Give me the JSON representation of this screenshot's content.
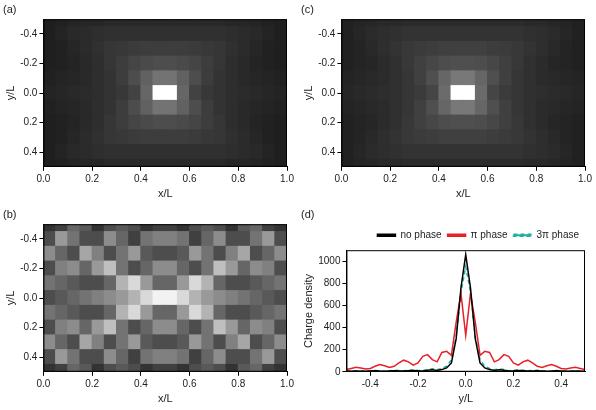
{
  "chart_data": [
    {
      "type": "heatmap",
      "panel": "(a)",
      "x_label": "x/L",
      "y_label": "y/L",
      "xlim": [
        0,
        1
      ],
      "ylim": [
        0.5,
        -0.5
      ],
      "xticks": [
        {
          "value": 0,
          "label": "0.0"
        },
        0.2,
        0.4,
        0.6,
        0.8,
        {
          "value": 1,
          "label": "1.0"
        }
      ],
      "yticks": [
        -0.4,
        -0.2,
        {
          "value": 0,
          "label": "0.0"
        },
        0.2,
        0.4
      ],
      "grid": false,
      "x": [
        0.025,
        0.075,
        0.125,
        0.175,
        0.225,
        0.275,
        0.325,
        0.375,
        0.425,
        0.475,
        0.525,
        0.575,
        0.625,
        0.675,
        0.725,
        0.775,
        0.825,
        0.875,
        0.925,
        0.975
      ],
      "y": [
        -0.5,
        -0.4,
        -0.3,
        -0.2,
        -0.1,
        0,
        0.1,
        0.2,
        0.3,
        0.4,
        0.5
      ],
      "cells": [
        [
          12,
          13,
          14,
          15,
          15,
          16,
          16,
          16,
          16,
          16,
          16,
          16,
          16,
          16,
          16,
          15,
          15,
          14,
          13,
          12
        ],
        [
          12,
          14,
          16,
          17,
          18,
          19,
          19,
          19,
          19,
          19,
          19,
          19,
          19,
          19,
          19,
          18,
          17,
          16,
          14,
          12
        ],
        [
          12,
          13,
          15,
          17,
          19,
          21,
          22,
          23,
          24,
          24,
          24,
          24,
          23,
          22,
          21,
          19,
          17,
          15,
          13,
          12
        ],
        [
          12,
          13,
          14,
          16,
          18,
          21,
          24,
          27,
          29,
          30,
          30,
          29,
          27,
          24,
          21,
          18,
          16,
          14,
          13,
          12
        ],
        [
          13,
          14,
          15,
          16,
          18,
          20,
          24,
          30,
          38,
          45,
          45,
          38,
          30,
          24,
          20,
          18,
          16,
          15,
          14,
          13
        ],
        [
          14,
          15,
          16,
          17,
          18,
          20,
          22,
          26,
          40,
          100,
          100,
          40,
          26,
          22,
          20,
          18,
          17,
          16,
          15,
          14
        ],
        [
          13,
          14,
          15,
          16,
          18,
          20,
          24,
          30,
          38,
          45,
          45,
          38,
          30,
          24,
          20,
          18,
          16,
          15,
          14,
          13
        ],
        [
          12,
          13,
          14,
          16,
          18,
          21,
          24,
          27,
          29,
          30,
          30,
          29,
          27,
          24,
          21,
          18,
          16,
          14,
          13,
          12
        ],
        [
          12,
          13,
          15,
          17,
          19,
          21,
          22,
          23,
          24,
          24,
          24,
          24,
          23,
          22,
          21,
          19,
          17,
          15,
          13,
          12
        ],
        [
          12,
          14,
          16,
          17,
          18,
          19,
          19,
          19,
          19,
          19,
          19,
          19,
          19,
          19,
          19,
          18,
          17,
          16,
          14,
          12
        ],
        [
          12,
          13,
          14,
          15,
          15,
          16,
          16,
          16,
          16,
          16,
          16,
          16,
          16,
          16,
          16,
          15,
          15,
          14,
          13,
          12
        ]
      ]
    },
    {
      "type": "heatmap",
      "panel": "(c)",
      "x_label": "x/L",
      "y_label": "y/L",
      "xlim": [
        0,
        1
      ],
      "ylim": [
        0.5,
        -0.5
      ],
      "xticks": [
        {
          "value": 0,
          "label": "0.0"
        },
        0.2,
        0.4,
        0.6,
        0.8,
        {
          "value": 1,
          "label": "1.0"
        }
      ],
      "yticks": [
        -0.4,
        -0.2,
        {
          "value": 0,
          "label": "0.0"
        },
        0.2,
        0.4
      ],
      "grid": false,
      "x": [
        0.025,
        0.075,
        0.125,
        0.175,
        0.225,
        0.275,
        0.325,
        0.375,
        0.425,
        0.475,
        0.525,
        0.575,
        0.625,
        0.675,
        0.725,
        0.775,
        0.825,
        0.875,
        0.925,
        0.975
      ],
      "y": [
        -0.5,
        -0.4,
        -0.3,
        -0.2,
        -0.1,
        0,
        0.1,
        0.2,
        0.3,
        0.4,
        0.5
      ],
      "cells": [
        [
          13,
          14,
          15,
          16,
          16,
          17,
          17,
          17,
          17,
          17,
          17,
          17,
          17,
          17,
          17,
          16,
          16,
          15,
          14,
          13
        ],
        [
          13,
          15,
          17,
          18,
          19,
          20,
          20,
          20,
          20,
          20,
          20,
          20,
          20,
          20,
          20,
          19,
          18,
          17,
          15,
          13
        ],
        [
          13,
          14,
          16,
          18,
          20,
          22,
          23,
          24,
          25,
          25,
          25,
          25,
          24,
          23,
          22,
          20,
          18,
          16,
          14,
          13
        ],
        [
          13,
          14,
          15,
          17,
          19,
          22,
          25,
          28,
          30,
          31,
          31,
          30,
          28,
          25,
          22,
          19,
          17,
          15,
          14,
          13
        ],
        [
          14,
          15,
          16,
          17,
          19,
          21,
          25,
          31,
          40,
          47,
          47,
          40,
          31,
          25,
          21,
          19,
          17,
          16,
          15,
          14
        ],
        [
          15,
          16,
          17,
          18,
          19,
          21,
          23,
          27,
          42,
          100,
          100,
          42,
          27,
          23,
          21,
          19,
          18,
          17,
          16,
          15
        ],
        [
          14,
          15,
          16,
          17,
          19,
          21,
          25,
          31,
          40,
          47,
          47,
          40,
          31,
          25,
          21,
          19,
          17,
          16,
          15,
          14
        ],
        [
          13,
          14,
          15,
          17,
          19,
          22,
          25,
          28,
          30,
          31,
          31,
          30,
          28,
          25,
          22,
          19,
          17,
          15,
          14,
          13
        ],
        [
          13,
          14,
          16,
          18,
          20,
          22,
          23,
          24,
          25,
          25,
          25,
          25,
          24,
          23,
          22,
          20,
          18,
          16,
          14,
          13
        ],
        [
          13,
          15,
          17,
          18,
          19,
          20,
          20,
          20,
          20,
          20,
          20,
          20,
          20,
          20,
          20,
          19,
          18,
          17,
          15,
          13
        ],
        [
          13,
          14,
          15,
          16,
          16,
          17,
          17,
          17,
          17,
          17,
          17,
          17,
          17,
          17,
          17,
          16,
          16,
          15,
          14,
          13
        ]
      ]
    },
    {
      "type": "heatmap",
      "panel": "(b)",
      "x_label": "x/L",
      "y_label": "y/L",
      "xlim": [
        0,
        1
      ],
      "ylim": [
        0.5,
        -0.5
      ],
      "xticks": [
        {
          "value": 0,
          "label": "0.0"
        },
        0.2,
        0.4,
        0.6,
        0.8,
        {
          "value": 1,
          "label": "1.0"
        }
      ],
      "yticks": [
        -0.4,
        -0.2,
        {
          "value": 0,
          "label": "0.0"
        },
        0.2,
        0.4
      ],
      "grid": false,
      "x": [
        0.025,
        0.075,
        0.125,
        0.175,
        0.225,
        0.275,
        0.325,
        0.375,
        0.425,
        0.475,
        0.525,
        0.575,
        0.625,
        0.675,
        0.725,
        0.775,
        0.825,
        0.875,
        0.925,
        0.975
      ],
      "y": [
        -0.5,
        -0.4,
        -0.3,
        -0.2,
        -0.1,
        0,
        0.1,
        0.2,
        0.3,
        0.4,
        0.5
      ],
      "cells": [
        [
          20,
          25,
          40,
          35,
          20,
          30,
          35,
          30,
          20,
          25,
          25,
          20,
          30,
          35,
          30,
          20,
          35,
          40,
          25,
          20
        ],
        [
          30,
          60,
          45,
          30,
          30,
          55,
          40,
          25,
          45,
          50,
          50,
          45,
          25,
          40,
          55,
          30,
          30,
          45,
          60,
          30
        ],
        [
          55,
          40,
          30,
          65,
          50,
          30,
          45,
          60,
          35,
          30,
          30,
          35,
          60,
          45,
          30,
          50,
          65,
          30,
          40,
          55
        ],
        [
          30,
          50,
          55,
          40,
          60,
          75,
          45,
          30,
          40,
          55,
          55,
          40,
          30,
          45,
          75,
          60,
          40,
          55,
          50,
          30
        ],
        [
          45,
          40,
          35,
          30,
          30,
          40,
          70,
          85,
          60,
          40,
          40,
          60,
          85,
          70,
          40,
          30,
          30,
          35,
          40,
          45
        ],
        [
          30,
          35,
          40,
          45,
          50,
          55,
          60,
          70,
          85,
          95,
          95,
          85,
          70,
          60,
          55,
          50,
          45,
          40,
          35,
          30
        ],
        [
          45,
          40,
          35,
          30,
          30,
          40,
          70,
          85,
          60,
          40,
          40,
          60,
          85,
          70,
          40,
          30,
          30,
          35,
          40,
          45
        ],
        [
          30,
          50,
          55,
          40,
          60,
          75,
          45,
          30,
          40,
          55,
          55,
          40,
          30,
          45,
          75,
          60,
          40,
          55,
          50,
          30
        ],
        [
          55,
          40,
          30,
          65,
          50,
          30,
          45,
          60,
          35,
          30,
          30,
          35,
          60,
          45,
          30,
          50,
          65,
          30,
          40,
          55
        ],
        [
          30,
          60,
          45,
          30,
          30,
          55,
          40,
          25,
          45,
          50,
          50,
          45,
          25,
          40,
          55,
          30,
          30,
          45,
          60,
          30
        ],
        [
          20,
          25,
          40,
          35,
          20,
          30,
          35,
          30,
          20,
          25,
          25,
          20,
          30,
          35,
          30,
          20,
          35,
          40,
          25,
          20
        ]
      ]
    },
    {
      "type": "line",
      "panel": "(d)",
      "x_label": "y/L",
      "y_label": "Charge density",
      "xlim": [
        -0.5,
        0.5
      ],
      "ylim": [
        0,
        1100
      ],
      "xticks": [
        -0.4,
        -0.2,
        {
          "value": 0,
          "label": "0.0"
        },
        0.2,
        0.4
      ],
      "yticks": [
        0,
        200,
        400,
        600,
        800,
        1000
      ],
      "grid": false,
      "legend": "top",
      "x": [
        -0.5,
        -0.48,
        -0.46,
        -0.44,
        -0.42,
        -0.4,
        -0.38,
        -0.36,
        -0.34,
        -0.32,
        -0.3,
        -0.28,
        -0.26,
        -0.24,
        -0.22,
        -0.2,
        -0.18,
        -0.16,
        -0.14,
        -0.12,
        -0.1,
        -0.08,
        -0.06,
        -0.04,
        -0.02,
        0,
        0.02,
        0.04,
        0.06,
        0.08,
        0.1,
        0.12,
        0.14,
        0.16,
        0.18,
        0.2,
        0.22,
        0.24,
        0.26,
        0.28,
        0.3,
        0.32,
        0.34,
        0.36,
        0.38,
        0.4,
        0.42,
        0.44,
        0.46,
        0.48,
        0.5
      ],
      "series": [
        {
          "name": "no phase",
          "color": "#000000",
          "line_style": "solid",
          "values": [
            5,
            6,
            8,
            6,
            5,
            7,
            9,
            7,
            6,
            8,
            10,
            8,
            7,
            10,
            12,
            9,
            8,
            14,
            18,
            12,
            20,
            35,
            80,
            300,
            760,
            1060,
            760,
            300,
            80,
            35,
            20,
            12,
            18,
            14,
            8,
            9,
            12,
            10,
            7,
            8,
            10,
            8,
            6,
            7,
            9,
            7,
            5,
            6,
            8,
            6,
            5
          ]
        },
        {
          "name": "π phase",
          "color": "#e8202a",
          "line_style": "solid",
          "values": [
            20,
            30,
            40,
            35,
            25,
            30,
            50,
            65,
            55,
            40,
            50,
            80,
            105,
            90,
            60,
            80,
            140,
            155,
            110,
            90,
            175,
            185,
            150,
            450,
            710,
            330,
            710,
            450,
            150,
            185,
            175,
            90,
            110,
            155,
            140,
            80,
            60,
            90,
            105,
            80,
            50,
            40,
            55,
            65,
            50,
            30,
            25,
            35,
            40,
            30,
            20
          ]
        },
        {
          "name": "3π phase",
          "color": "#20b0a0",
          "line_style": "dashed",
          "values": [
            6,
            8,
            10,
            8,
            6,
            9,
            12,
            9,
            7,
            10,
            14,
            11,
            9,
            14,
            18,
            12,
            10,
            20,
            28,
            18,
            30,
            50,
            110,
            320,
            720,
            950,
            720,
            320,
            110,
            50,
            30,
            18,
            28,
            20,
            10,
            12,
            18,
            14,
            9,
            11,
            14,
            10,
            7,
            9,
            12,
            9,
            6,
            8,
            10,
            8,
            6
          ]
        }
      ]
    }
  ]
}
